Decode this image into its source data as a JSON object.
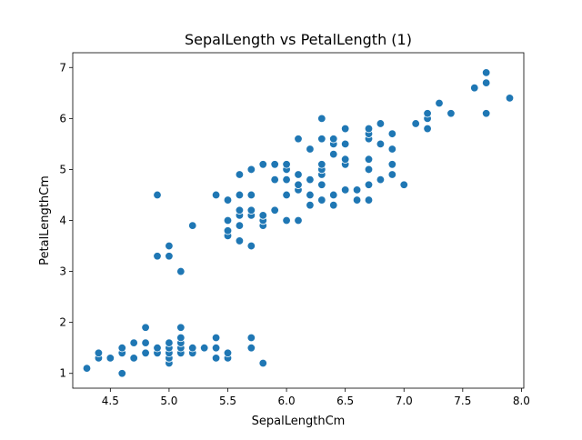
{
  "chart_data": {
    "type": "scatter",
    "title": "SepalLength vs PetalLength (1)",
    "xlabel": "SepalLengthCm",
    "ylabel": "PetalLengthCm",
    "xlim": [
      4.18,
      8.02
    ],
    "ylim": [
      0.71,
      7.29
    ],
    "xticks": [
      4.5,
      5.0,
      5.5,
      6.0,
      6.5,
      7.0,
      7.5,
      8.0
    ],
    "xtick_labels": [
      "4.5",
      "5.0",
      "5.5",
      "6.0",
      "6.5",
      "7.0",
      "7.5",
      "8.0"
    ],
    "yticks": [
      1,
      2,
      3,
      4,
      5,
      6,
      7
    ],
    "ytick_labels": [
      "1",
      "2",
      "3",
      "4",
      "5",
      "6",
      "7"
    ],
    "grid": false,
    "marker_color": "#1f77b4",
    "marker_edge_color": "#ffffff",
    "series": [
      {
        "points": [
          [
            4.3,
            1.1
          ],
          [
            4.4,
            1.3
          ],
          [
            4.4,
            1.4
          ],
          [
            4.5,
            1.3
          ],
          [
            4.6,
            1.0
          ],
          [
            4.6,
            1.4
          ],
          [
            4.6,
            1.5
          ],
          [
            4.7,
            1.3
          ],
          [
            4.7,
            1.6
          ],
          [
            4.8,
            1.4
          ],
          [
            4.8,
            1.6
          ],
          [
            4.8,
            1.9
          ],
          [
            4.9,
            1.4
          ],
          [
            4.9,
            1.5
          ],
          [
            5.0,
            1.2
          ],
          [
            5.0,
            1.3
          ],
          [
            5.0,
            1.4
          ],
          [
            5.0,
            1.5
          ],
          [
            5.0,
            1.6
          ],
          [
            5.1,
            1.4
          ],
          [
            5.1,
            1.5
          ],
          [
            5.1,
            1.6
          ],
          [
            5.1,
            1.7
          ],
          [
            5.1,
            1.9
          ],
          [
            5.2,
            1.4
          ],
          [
            5.2,
            1.5
          ],
          [
            5.3,
            1.5
          ],
          [
            5.4,
            1.3
          ],
          [
            5.4,
            1.5
          ],
          [
            5.4,
            1.7
          ],
          [
            5.5,
            1.3
          ],
          [
            5.5,
            1.4
          ],
          [
            5.7,
            1.5
          ],
          [
            5.7,
            1.7
          ],
          [
            5.8,
            1.2
          ],
          [
            4.9,
            4.5
          ],
          [
            4.9,
            3.3
          ],
          [
            5.0,
            3.3
          ],
          [
            5.0,
            3.5
          ],
          [
            5.1,
            3.0
          ],
          [
            5.2,
            3.9
          ],
          [
            5.4,
            4.5
          ],
          [
            5.5,
            3.7
          ],
          [
            5.5,
            3.8
          ],
          [
            5.5,
            4.0
          ],
          [
            5.5,
            4.4
          ],
          [
            5.6,
            3.6
          ],
          [
            5.6,
            3.9
          ],
          [
            5.6,
            4.1
          ],
          [
            5.6,
            4.2
          ],
          [
            5.6,
            4.5
          ],
          [
            5.6,
            4.9
          ],
          [
            5.7,
            3.5
          ],
          [
            5.7,
            4.1
          ],
          [
            5.7,
            4.2
          ],
          [
            5.7,
            4.5
          ],
          [
            5.7,
            5.0
          ],
          [
            5.8,
            3.9
          ],
          [
            5.8,
            4.0
          ],
          [
            5.8,
            4.1
          ],
          [
            5.8,
            5.1
          ],
          [
            5.9,
            4.2
          ],
          [
            5.9,
            4.8
          ],
          [
            5.9,
            5.1
          ],
          [
            6.0,
            4.0
          ],
          [
            6.0,
            4.5
          ],
          [
            6.0,
            4.8
          ],
          [
            6.0,
            5.0
          ],
          [
            6.0,
            5.1
          ],
          [
            6.1,
            4.0
          ],
          [
            6.1,
            4.6
          ],
          [
            6.1,
            4.7
          ],
          [
            6.1,
            4.9
          ],
          [
            6.1,
            5.6
          ],
          [
            6.2,
            4.3
          ],
          [
            6.2,
            4.5
          ],
          [
            6.2,
            4.8
          ],
          [
            6.2,
            5.4
          ],
          [
            6.3,
            4.4
          ],
          [
            6.3,
            4.7
          ],
          [
            6.3,
            4.9
          ],
          [
            6.3,
            5.0
          ],
          [
            6.3,
            5.1
          ],
          [
            6.3,
            5.6
          ],
          [
            6.3,
            6.0
          ],
          [
            6.4,
            4.3
          ],
          [
            6.4,
            4.5
          ],
          [
            6.4,
            5.3
          ],
          [
            6.4,
            5.5
          ],
          [
            6.4,
            5.6
          ],
          [
            6.5,
            4.6
          ],
          [
            6.5,
            5.1
          ],
          [
            6.5,
            5.2
          ],
          [
            6.5,
            5.5
          ],
          [
            6.5,
            5.8
          ],
          [
            6.6,
            4.4
          ],
          [
            6.6,
            4.6
          ],
          [
            6.7,
            4.4
          ],
          [
            6.7,
            4.7
          ],
          [
            6.7,
            5.0
          ],
          [
            6.7,
            5.2
          ],
          [
            6.7,
            5.6
          ],
          [
            6.7,
            5.7
          ],
          [
            6.7,
            5.8
          ],
          [
            6.8,
            4.8
          ],
          [
            6.8,
            5.5
          ],
          [
            6.8,
            5.9
          ],
          [
            6.9,
            4.9
          ],
          [
            6.9,
            5.1
          ],
          [
            6.9,
            5.4
          ],
          [
            6.9,
            5.7
          ],
          [
            7.0,
            4.7
          ],
          [
            7.1,
            5.9
          ],
          [
            7.2,
            5.8
          ],
          [
            7.2,
            6.0
          ],
          [
            7.2,
            6.1
          ],
          [
            7.3,
            6.3
          ],
          [
            7.4,
            6.1
          ],
          [
            7.6,
            6.6
          ],
          [
            7.7,
            6.1
          ],
          [
            7.7,
            6.7
          ],
          [
            7.7,
            6.9
          ],
          [
            7.9,
            6.4
          ]
        ]
      }
    ]
  }
}
